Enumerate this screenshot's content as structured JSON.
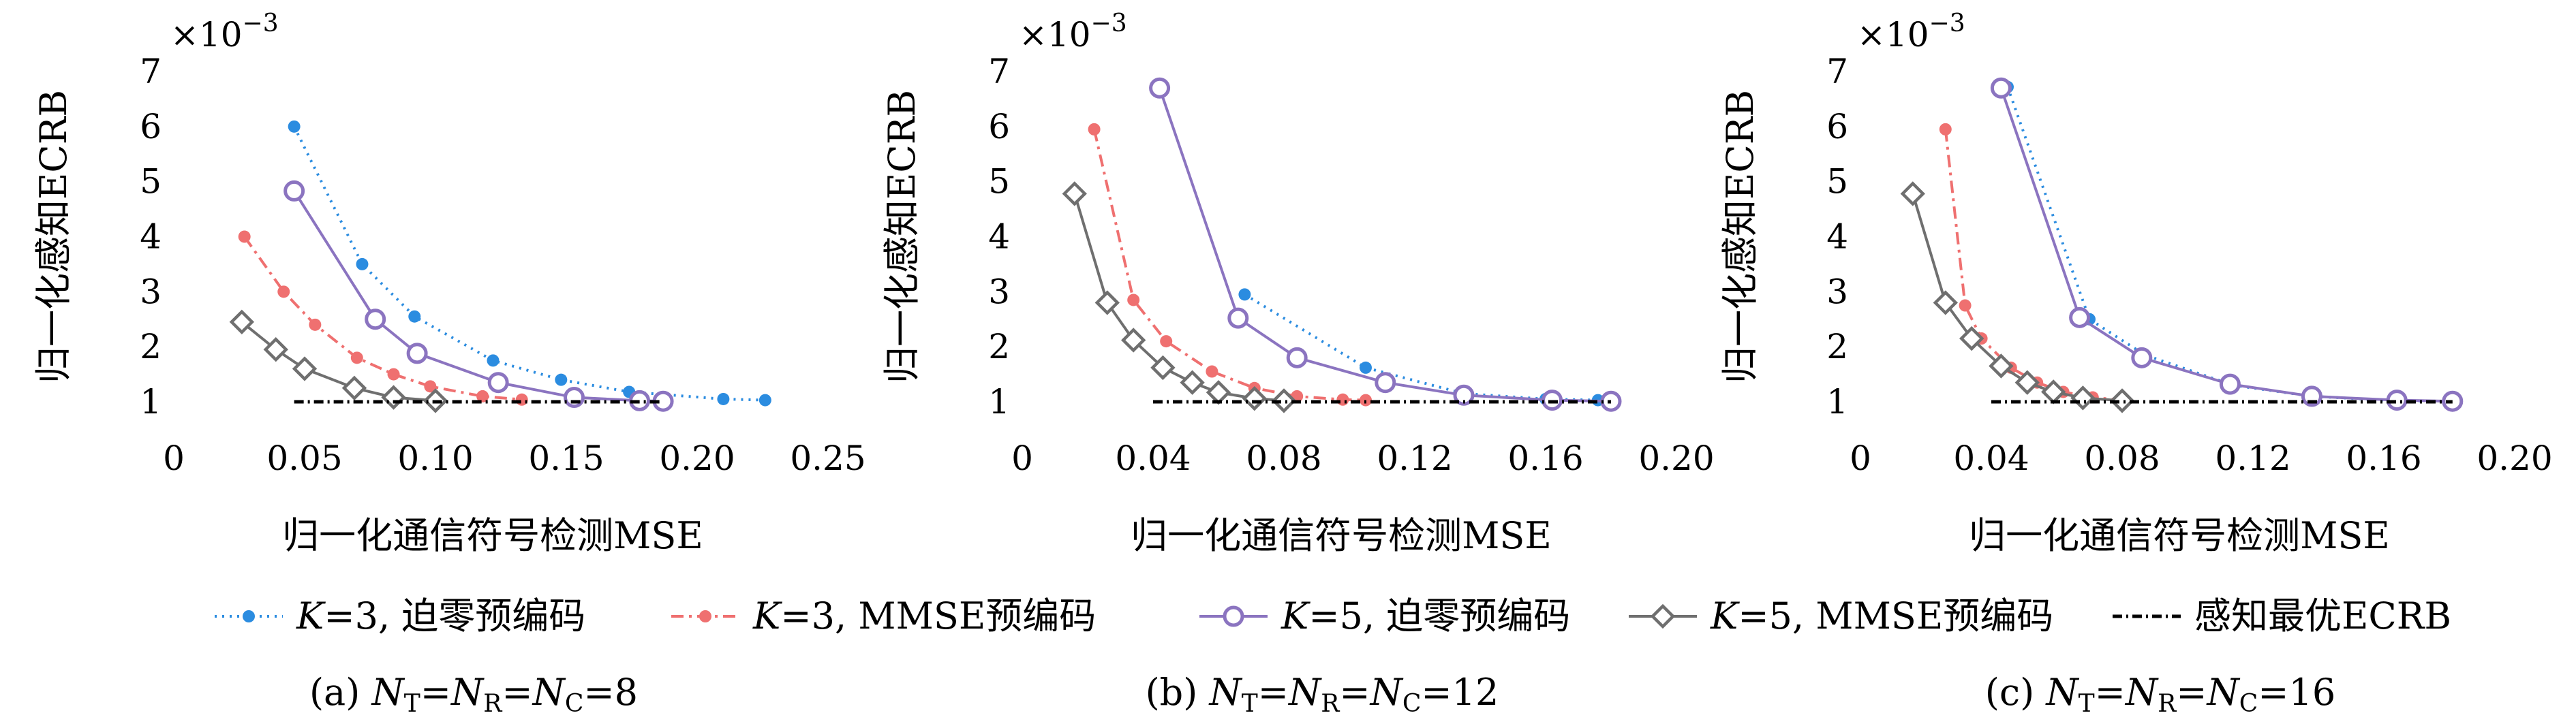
{
  "colors": {
    "k3_zf": "#2b8ce0",
    "k3_mmse": "#ef7070",
    "k5_zf": "#8b74c0",
    "k5_mmse": "#6f6f6f",
    "optimal": "#000000",
    "axis": "#000000"
  },
  "legend": {
    "placement": "bottom",
    "items": [
      {
        "key": "k3_zf",
        "prefix": "K",
        "text": "=3, 迫零预编码"
      },
      {
        "key": "k3_mmse",
        "prefix": "K",
        "text": "=3, MMSE预编码"
      },
      {
        "key": "k5_zf",
        "prefix": "K",
        "text": "=5, 迫零预编码"
      },
      {
        "key": "k5_mmse",
        "prefix": "K",
        "text": "=5, MMSE预编码"
      },
      {
        "key": "optimal",
        "prefix": "",
        "text": "感知最优ECRB"
      }
    ]
  },
  "chart_data": [
    {
      "type": "line",
      "caption": {
        "label": "(a)",
        "n": "N",
        "sub_t": "T",
        "sub_r": "R",
        "sub_c": "C",
        "value": "=8"
      },
      "xlabel": "归一化通信符号检测MSE",
      "ylabel": "归一化感知ECRB",
      "multiplier": {
        "base": "×10",
        "exp": "−3"
      },
      "xlim": [
        0,
        0.25
      ],
      "ylim": [
        1,
        7
      ],
      "xticks": [
        {
          "v": 0,
          "label": "0"
        },
        {
          "v": 0.05,
          "label": "0.05"
        },
        {
          "v": 0.1,
          "label": "0.10"
        },
        {
          "v": 0.15,
          "label": "0.15"
        },
        {
          "v": 0.2,
          "label": "0.20"
        },
        {
          "v": 0.25,
          "label": "0.25"
        }
      ],
      "yticks": [
        {
          "v": 1,
          "label": "1"
        },
        {
          "v": 2,
          "label": "2"
        },
        {
          "v": 3,
          "label": "3"
        },
        {
          "v": 4,
          "label": "4"
        },
        {
          "v": 5,
          "label": "5"
        },
        {
          "v": 6,
          "label": "6"
        },
        {
          "v": 7,
          "label": "7"
        }
      ],
      "grid": false,
      "series": [
        {
          "key": "k3_zf",
          "x": [
            0.046,
            0.072,
            0.092,
            0.122,
            0.148,
            0.174,
            0.21,
            0.226
          ],
          "y": [
            6.0,
            3.5,
            2.55,
            1.75,
            1.4,
            1.18,
            1.05,
            1.03
          ]
        },
        {
          "key": "k3_mmse",
          "x": [
            0.027,
            0.042,
            0.054,
            0.07,
            0.084,
            0.098,
            0.118,
            0.133
          ],
          "y": [
            4.0,
            3.0,
            2.4,
            1.8,
            1.5,
            1.28,
            1.1,
            1.04
          ]
        },
        {
          "key": "k5_zf",
          "x": [
            0.046,
            0.077,
            0.093,
            0.124,
            0.153,
            0.178,
            0.187
          ],
          "y": [
            4.83,
            2.5,
            1.88,
            1.35,
            1.08,
            1.02,
            1.01
          ]
        },
        {
          "key": "k5_mmse",
          "x": [
            0.026,
            0.039,
            0.05,
            0.069,
            0.084,
            0.1
          ],
          "y": [
            2.45,
            1.95,
            1.6,
            1.25,
            1.08,
            1.02
          ]
        },
        {
          "key": "optimal",
          "x": [
            0.046,
            0.187
          ],
          "y": [
            1.0,
            1.0
          ]
        }
      ]
    },
    {
      "type": "line",
      "caption": {
        "label": "(b)",
        "n": "N",
        "sub_t": "T",
        "sub_r": "R",
        "sub_c": "C",
        "value": "=12"
      },
      "xlabel": "归一化通信符号检测MSE",
      "ylabel": "归一化感知ECRB",
      "multiplier": {
        "base": "×10",
        "exp": "−3"
      },
      "xlim": [
        0,
        0.2
      ],
      "ylim": [
        1,
        7
      ],
      "xticks": [
        {
          "v": 0,
          "label": "0"
        },
        {
          "v": 0.04,
          "label": "0.04"
        },
        {
          "v": 0.08,
          "label": "0.08"
        },
        {
          "v": 0.12,
          "label": "0.12"
        },
        {
          "v": 0.16,
          "label": "0.16"
        },
        {
          "v": 0.2,
          "label": "0.20"
        }
      ],
      "yticks": [
        {
          "v": 1,
          "label": "1"
        },
        {
          "v": 2,
          "label": "2"
        },
        {
          "v": 3,
          "label": "3"
        },
        {
          "v": 4,
          "label": "4"
        },
        {
          "v": 5,
          "label": "5"
        },
        {
          "v": 6,
          "label": "6"
        },
        {
          "v": 7,
          "label": "7"
        }
      ],
      "grid": false,
      "series": [
        {
          "key": "k3_zf",
          "x": [
            0.068,
            0.105,
            0.135,
            0.16,
            0.176
          ],
          "y": [
            2.95,
            1.62,
            1.15,
            1.05,
            1.03
          ]
        },
        {
          "key": "k3_mmse",
          "x": [
            0.022,
            0.034,
            0.044,
            0.058,
            0.071,
            0.084,
            0.098,
            0.105
          ],
          "y": [
            5.95,
            2.85,
            2.1,
            1.55,
            1.25,
            1.1,
            1.04,
            1.03
          ]
        },
        {
          "key": "k5_zf",
          "x": [
            0.042,
            0.066,
            0.084,
            0.111,
            0.135,
            0.162,
            0.18
          ],
          "y": [
            6.7,
            2.52,
            1.8,
            1.35,
            1.12,
            1.03,
            1.01
          ]
        },
        {
          "key": "k5_mmse",
          "x": [
            0.016,
            0.026,
            0.034,
            0.043,
            0.052,
            0.06,
            0.071,
            0.08
          ],
          "y": [
            4.78,
            2.8,
            2.12,
            1.62,
            1.35,
            1.17,
            1.06,
            1.02
          ]
        },
        {
          "key": "optimal",
          "x": [
            0.04,
            0.18
          ],
          "y": [
            1.0,
            1.0
          ]
        }
      ]
    },
    {
      "type": "line",
      "caption": {
        "label": "(c)",
        "n": "N",
        "sub_t": "T",
        "sub_r": "R",
        "sub_c": "C",
        "value": "=16"
      },
      "xlabel": "归一化通信符号检测MSE",
      "ylabel": "归一化感知ECRB",
      "multiplier": {
        "base": "×10",
        "exp": "−3"
      },
      "xlim": [
        0,
        0.2
      ],
      "ylim": [
        1,
        7
      ],
      "xticks": [
        {
          "v": 0,
          "label": "0"
        },
        {
          "v": 0.04,
          "label": "0.04"
        },
        {
          "v": 0.08,
          "label": "0.08"
        },
        {
          "v": 0.12,
          "label": "0.12"
        },
        {
          "v": 0.16,
          "label": "0.16"
        },
        {
          "v": 0.2,
          "label": "0.20"
        }
      ],
      "yticks": [
        {
          "v": 1,
          "label": "1"
        },
        {
          "v": 2,
          "label": "2"
        },
        {
          "v": 3,
          "label": "3"
        },
        {
          "v": 4,
          "label": "4"
        },
        {
          "v": 5,
          "label": "5"
        },
        {
          "v": 6,
          "label": "6"
        },
        {
          "v": 7,
          "label": "7"
        }
      ],
      "grid": false,
      "series": [
        {
          "key": "k3_zf",
          "x": [
            0.045,
            0.07,
            0.087,
            0.114,
            0.138,
            0.164,
            0.181
          ],
          "y": [
            6.72,
            2.5,
            1.85,
            1.3,
            1.1,
            1.02,
            1.01
          ]
        },
        {
          "key": "k3_mmse",
          "x": [
            0.026,
            0.032,
            0.037,
            0.046,
            0.054,
            0.062,
            0.071,
            0.08
          ],
          "y": [
            5.95,
            2.75,
            2.15,
            1.62,
            1.35,
            1.18,
            1.08,
            1.03
          ]
        },
        {
          "key": "k5_zf",
          "x": [
            0.043,
            0.067,
            0.086,
            0.113,
            0.138,
            0.164,
            0.181
          ],
          "y": [
            6.7,
            2.53,
            1.8,
            1.32,
            1.1,
            1.03,
            1.01
          ]
        },
        {
          "key": "k5_mmse",
          "x": [
            0.016,
            0.026,
            0.034,
            0.043,
            0.051,
            0.059,
            0.068,
            0.08
          ],
          "y": [
            4.78,
            2.8,
            2.15,
            1.65,
            1.35,
            1.18,
            1.07,
            1.02
          ]
        },
        {
          "key": "optimal",
          "x": [
            0.04,
            0.181
          ],
          "y": [
            1.0,
            1.0
          ]
        }
      ]
    }
  ]
}
